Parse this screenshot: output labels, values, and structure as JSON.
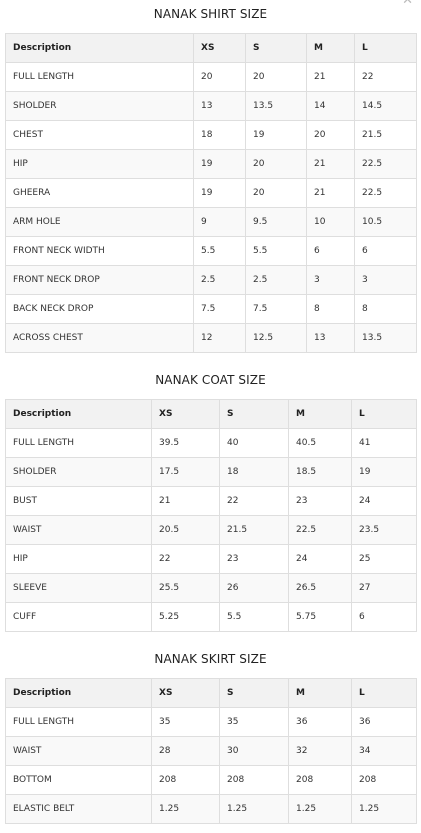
{
  "icons": {
    "close": "close-icon"
  },
  "tables": [
    {
      "title": "NANAK SHIRT SIZE",
      "headers": [
        "Description",
        "XS",
        "S",
        "M",
        "L"
      ],
      "rows": [
        [
          "FULL LENGTH",
          "20",
          "20",
          "21",
          "22"
        ],
        [
          "SHOLDER",
          "13",
          "13.5",
          "14",
          "14.5"
        ],
        [
          "CHEST",
          "18",
          "19",
          "20",
          "21.5"
        ],
        [
          "HIP",
          "19",
          "20",
          "21",
          "22.5"
        ],
        [
          "GHEERA",
          "19",
          "20",
          "21",
          "22.5"
        ],
        [
          "ARM HOLE",
          "9",
          "9.5",
          "10",
          "10.5"
        ],
        [
          "FRONT NECK WIDTH",
          "5.5",
          "5.5",
          "6",
          "6"
        ],
        [
          "FRONT NECK DROP",
          "2.5",
          "2.5",
          "3",
          "3"
        ],
        [
          "BACK NECK DROP",
          "7.5",
          "7.5",
          "8",
          "8"
        ],
        [
          "ACROSS CHEST",
          "12",
          "12.5",
          "13",
          "13.5"
        ]
      ]
    },
    {
      "title": "NANAK COAT SIZE",
      "headers": [
        "Description",
        "XS",
        "S",
        "M",
        "L"
      ],
      "rows": [
        [
          "FULL LENGTH",
          "39.5",
          "40",
          "40.5",
          "41"
        ],
        [
          "SHOLDER",
          "17.5",
          "18",
          "18.5",
          "19"
        ],
        [
          "BUST",
          "21",
          "22",
          "23",
          "24"
        ],
        [
          "WAIST",
          "20.5",
          "21.5",
          "22.5",
          "23.5"
        ],
        [
          "HIP",
          "22",
          "23",
          "24",
          "25"
        ],
        [
          "SLEEVE",
          "25.5",
          "26",
          "26.5",
          "27"
        ],
        [
          "CUFF",
          "5.25",
          "5.5",
          "5.75",
          "6"
        ]
      ]
    },
    {
      "title": "NANAK SKIRT SIZE",
      "headers": [
        "Description",
        "XS",
        "S",
        "M",
        "L"
      ],
      "rows": [
        [
          "FULL LENGTH",
          "35",
          "35",
          "36",
          "36"
        ],
        [
          "WAIST",
          "28",
          "30",
          "32",
          "34"
        ],
        [
          "BOTTOM",
          "208",
          "208",
          "208",
          "208"
        ],
        [
          "ELASTIC BELT",
          "1.25",
          "1.25",
          "1.25",
          "1.25"
        ]
      ]
    }
  ]
}
